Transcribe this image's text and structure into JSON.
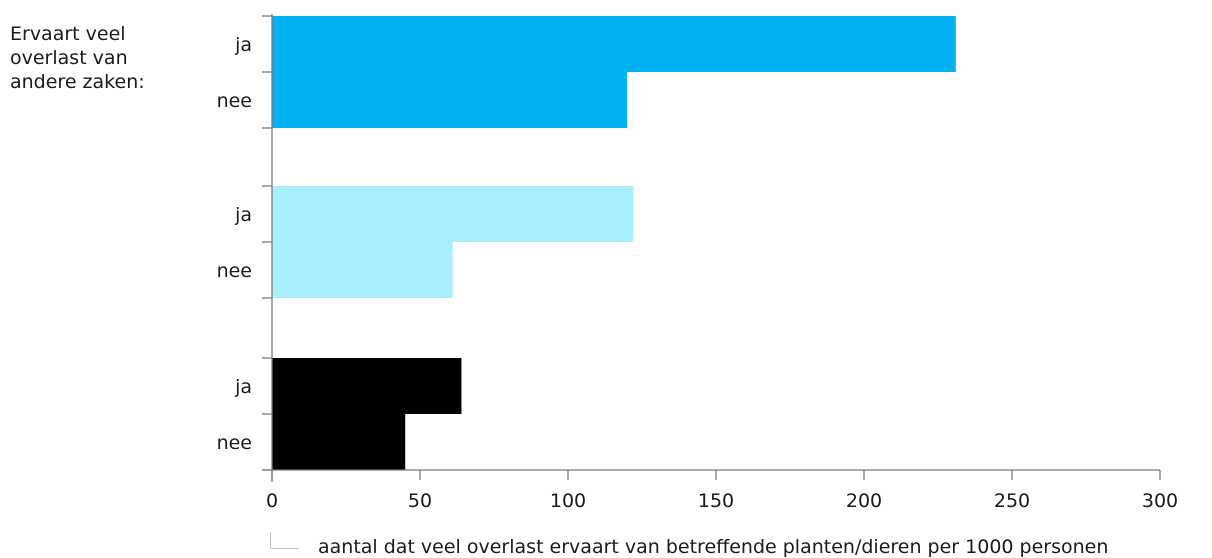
{
  "group_title_lines": [
    "Ervaart veel",
    "overlast van",
    "andere zaken:"
  ],
  "legend": {
    "label": "aantal dat veel overlast ervaart van betreffende planten/dieren per 1000 personen"
  },
  "chart_data": {
    "type": "bar",
    "orientation": "horizontal",
    "title": "",
    "xlabel": "aantal dat veel overlast ervaart van betreffende planten/dieren per 1000 personen",
    "ylabel": "Ervaart veel overlast van andere zaken:",
    "xlim": [
      0,
      300
    ],
    "xticks": [
      0,
      50,
      100,
      150,
      200,
      250,
      300
    ],
    "categories": [
      "ja",
      "nee",
      "ja",
      "nee",
      "ja",
      "nee"
    ],
    "values": [
      231,
      120,
      122,
      61,
      64,
      45
    ],
    "colors": [
      "#00b0f0",
      "#00b0f0",
      "#a8eefc",
      "#a8eefc",
      "#000000",
      "#000000"
    ],
    "legend_placement": "bottom",
    "grid": false
  }
}
